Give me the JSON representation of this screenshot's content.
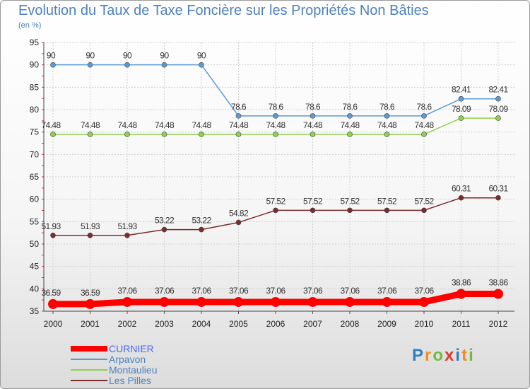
{
  "header": {
    "title": "Evolution du Taux de Taxe Foncière sur les Propriétés Non Bâties",
    "subtitle": "(en %)"
  },
  "logo": {
    "text": "Proxiti",
    "letters": [
      "P",
      "r",
      "o",
      "x",
      "i",
      "t",
      "i"
    ],
    "colors": [
      "#2f7fc1",
      "#f28c28",
      "#72b844",
      "#e23a2e",
      "#2f7fc1",
      "#f28c28",
      "#72b844"
    ]
  },
  "chart_data": {
    "type": "line",
    "title": "Evolution du Taux de Taxe Foncière sur les Propriétés Non Bâties",
    "ylabel": "(en %)",
    "xlabel": "",
    "x": [
      "2000",
      "2001",
      "2002",
      "2003",
      "2004",
      "2005",
      "2006",
      "2007",
      "2008",
      "2009",
      "2010",
      "2011",
      "2012"
    ],
    "ylim": [
      35,
      95
    ],
    "yticks": [
      35,
      40,
      45,
      50,
      55,
      60,
      65,
      70,
      75,
      80,
      85,
      90,
      95
    ],
    "grid": true,
    "legend_position": "bottom-left",
    "series": [
      {
        "name": "CURNIER",
        "color": "#ff0000",
        "values": [
          36.59,
          36.59,
          37.06,
          37.06,
          37.06,
          37.06,
          37.06,
          37.06,
          37.06,
          37.06,
          37.06,
          38.86,
          38.86
        ],
        "labels": [
          "36.59",
          "36.59",
          "37.06",
          "37.06",
          "37.06",
          "37.06",
          "37.06",
          "37.06",
          "37.06",
          "37.06",
          "37.06",
          "38.86",
          "38.86"
        ]
      },
      {
        "name": "Arpavon",
        "color": "#5b9bd5",
        "values": [
          90,
          90,
          90,
          90,
          90,
          78.6,
          78.6,
          78.6,
          78.6,
          78.6,
          78.6,
          82.41,
          82.41
        ],
        "labels": [
          "90",
          "90",
          "90",
          "90",
          "90",
          "78.6",
          "78.6",
          "78.6",
          "78.6",
          "78.6",
          "78.6",
          "82.41",
          "82.41"
        ]
      },
      {
        "name": "Montaulieu",
        "color": "#92d050",
        "values": [
          74.48,
          74.48,
          74.48,
          74.48,
          74.48,
          74.48,
          74.48,
          74.48,
          74.48,
          74.48,
          74.48,
          78.09,
          78.09
        ],
        "labels": [
          "74.48",
          "74.48",
          "74.48",
          "74.48",
          "74.48",
          "74.48",
          "74.48",
          "74.48",
          "74.48",
          "74.48",
          "74.48",
          "78.09",
          "78.09"
        ]
      },
      {
        "name": "Les Pilles",
        "color": "#7b2c2c",
        "values": [
          51.93,
          51.93,
          51.93,
          53.22,
          53.22,
          54.82,
          57.52,
          57.52,
          57.52,
          57.52,
          57.52,
          60.31,
          60.31
        ],
        "labels": [
          "51.93",
          "51.93",
          "51.93",
          "53.22",
          "53.22",
          "54.82",
          "57.52",
          "57.52",
          "57.52",
          "57.52",
          "57.52",
          "60.31",
          "60.31"
        ]
      }
    ]
  }
}
